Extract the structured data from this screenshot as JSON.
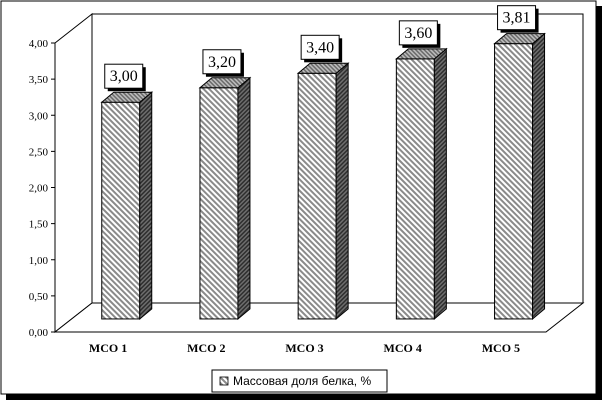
{
  "chart_data": {
    "type": "bar",
    "categories": [
      "МСО 1",
      "МСО 2",
      "МСО 3",
      "МСО 4",
      "МСО 5"
    ],
    "series": [
      {
        "name": "Массовая доля белка, %",
        "values": [
          3.0,
          3.2,
          3.4,
          3.6,
          3.81
        ]
      }
    ],
    "data_labels": [
      "3,00",
      "3,20",
      "3,40",
      "3,60",
      "3,81"
    ],
    "y_ticks": [
      "0,00",
      "0,50",
      "1,00",
      "1,50",
      "2,00",
      "2,50",
      "3,00",
      "3,50",
      "4,00"
    ],
    "ylim": [
      0,
      4
    ],
    "grid": false,
    "legend_position": "bottom",
    "style": "3d-hatched"
  }
}
